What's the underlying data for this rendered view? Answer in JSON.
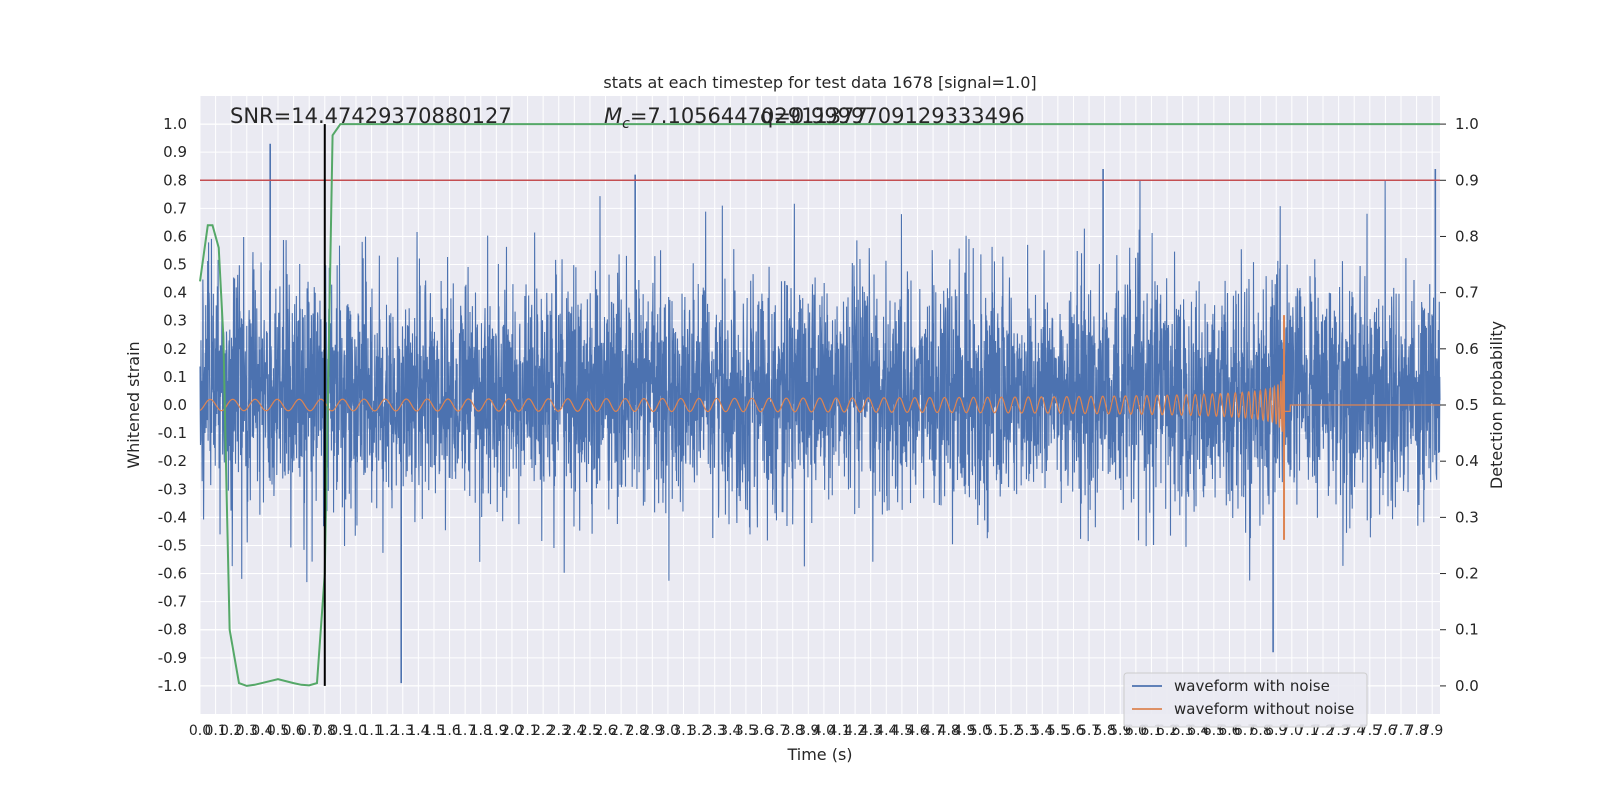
{
  "chart_data": {
    "type": "line",
    "title": "stats at each timestep for test data 1678 [signal=1.0]",
    "xlabel": "Time (s)",
    "ylabel": "Whitened strain",
    "y2label": "Detection probability",
    "xlim": [
      0.0,
      7.95
    ],
    "ylim": [
      -1.1,
      1.1
    ],
    "y2lim": [
      -0.05,
      1.05
    ],
    "x_ticks": [
      "0.0",
      "0.1",
      "0.2",
      "0.3",
      "0.4",
      "0.5",
      "0.6",
      "0.7",
      "0.8",
      "0.9",
      "1.0",
      "1.1",
      "1.2",
      "1.3",
      "1.4",
      "1.5",
      "1.6",
      "1.7",
      "1.8",
      "1.9",
      "2.0",
      "2.1",
      "2.2",
      "2.3",
      "2.4",
      "2.5",
      "2.6",
      "2.7",
      "2.8",
      "2.9",
      "3.0",
      "3.1",
      "3.2",
      "3.3",
      "3.4",
      "3.5",
      "3.6",
      "3.7",
      "3.8",
      "3.9",
      "4.0",
      "4.1",
      "4.2",
      "4.3",
      "4.4",
      "4.5",
      "4.6",
      "4.7",
      "4.8",
      "4.9",
      "5.0",
      "5.1",
      "5.2",
      "5.3",
      "5.4",
      "5.5",
      "5.6",
      "5.7",
      "5.8",
      "5.9",
      "6.0",
      "6.1",
      "6.2",
      "6.3",
      "6.4",
      "6.5",
      "6.6",
      "6.7",
      "6.8",
      "6.9",
      "7.0",
      "7.1",
      "7.2",
      "7.3",
      "7.4",
      "7.5",
      "7.6",
      "7.7",
      "7.8",
      "7.9"
    ],
    "y_ticks": [
      "-1.0",
      "-0.9",
      "-0.8",
      "-0.7",
      "-0.6",
      "-0.5",
      "-0.4",
      "-0.3",
      "-0.2",
      "-0.1",
      "0.0",
      "0.1",
      "0.2",
      "0.3",
      "0.4",
      "0.5",
      "0.6",
      "0.7",
      "0.8",
      "0.9",
      "1.0"
    ],
    "y2_ticks": [
      "0.0",
      "0.1",
      "0.2",
      "0.3",
      "0.4",
      "0.5",
      "0.6",
      "0.7",
      "0.8",
      "0.9",
      "1.0"
    ],
    "grid": true,
    "legend_position": "bottom-right",
    "annotations": {
      "snr": "SNR=14.47429370880127",
      "mc_prefix": "M",
      "mc_sub": "c",
      "mc_value": "=7.105644702911377",
      "q_overlap": "q=0.9999709129333496"
    },
    "colors": {
      "noise": "#4c72b0",
      "clean": "#dd8452",
      "probability": "#55a868",
      "threshold": "#c44e52",
      "marker": "#000000",
      "plot_bg": "#eaeaf2"
    },
    "threshold_probability": 0.9,
    "marker_x": 0.8,
    "merger_time": 6.95,
    "series": [
      {
        "name": "waveform with noise",
        "kind": "noise",
        "envelope_peaks_y": [
          {
            "x": 0.45,
            "y": 0.93
          },
          {
            "x": 1.29,
            "y": -0.99
          },
          {
            "x": 2.79,
            "y": 0.82
          },
          {
            "x": 5.79,
            "y": 0.84
          },
          {
            "x": 6.88,
            "y": -0.88
          },
          {
            "x": 7.92,
            "y": 0.84
          }
        ]
      },
      {
        "name": "waveform without noise",
        "kind": "clean",
        "start_amplitude": 0.02,
        "peak_y": [
          0.32,
          -0.48
        ]
      },
      {
        "name": "detection probability",
        "kind": "probability",
        "axis": "y2",
        "points": [
          {
            "x": 0.0,
            "y": 0.72
          },
          {
            "x": 0.05,
            "y": 0.82
          },
          {
            "x": 0.08,
            "y": 0.82
          },
          {
            "x": 0.12,
            "y": 0.78
          },
          {
            "x": 0.15,
            "y": 0.62
          },
          {
            "x": 0.17,
            "y": 0.35
          },
          {
            "x": 0.19,
            "y": 0.1
          },
          {
            "x": 0.25,
            "y": 0.005
          },
          {
            "x": 0.3,
            "y": 0.0
          },
          {
            "x": 0.35,
            "y": 0.002
          },
          {
            "x": 0.5,
            "y": 0.012
          },
          {
            "x": 0.6,
            "y": 0.005
          },
          {
            "x": 0.65,
            "y": 0.002
          },
          {
            "x": 0.7,
            "y": 0.001
          },
          {
            "x": 0.75,
            "y": 0.005
          },
          {
            "x": 0.8,
            "y": 0.2
          },
          {
            "x": 0.85,
            "y": 0.98
          },
          {
            "x": 0.9,
            "y": 1.0
          },
          {
            "x": 7.95,
            "y": 1.0
          }
        ]
      }
    ],
    "legend": [
      {
        "label": "waveform with noise",
        "series": "noise"
      },
      {
        "label": "waveform without noise",
        "series": "clean"
      }
    ]
  }
}
